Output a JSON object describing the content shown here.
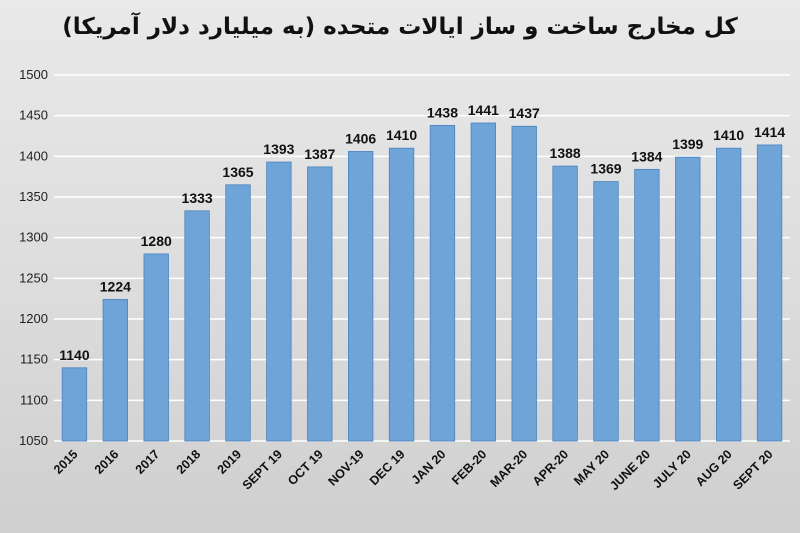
{
  "chart_data": {
    "type": "bar",
    "title": "کل مخارج ساخت و ساز ایالات متحده (به میلیارد دلار آمریکا)",
    "categories": [
      "2015",
      "2016",
      "2017",
      "2018",
      "2019",
      "SEPT 19",
      "OCT 19",
      "NOV-19",
      "DEC 19",
      "JAN 20",
      "FEB-20",
      "MAR-20",
      "APR-20",
      "MAY 20",
      "JUNE 20",
      "JULY 20",
      "AUG 20",
      "SEPT 20"
    ],
    "values": [
      1140,
      1224,
      1280,
      1333,
      1365,
      1393,
      1387,
      1406,
      1410,
      1438,
      1441,
      1437,
      1388,
      1369,
      1384,
      1399,
      1410,
      1414
    ],
    "data_labels": [
      "1140",
      "1224",
      "1280",
      "1333",
      "1365",
      "1393",
      "1387",
      "1406",
      "1410",
      "1438",
      "1441",
      "1437",
      "1388",
      "1369",
      "1384",
      "1399",
      "1410",
      "1414"
    ],
    "ylim": [
      1050,
      1500
    ],
    "yticks": [
      "1050",
      "1100",
      "1150",
      "1200",
      "1250",
      "1300",
      "1350",
      "1400",
      "1450",
      "1500"
    ],
    "xlabel": "",
    "ylabel": "",
    "grid": true,
    "legend": "none",
    "colors": {
      "bar": "#6fa4d8",
      "bar_edge": "#4a83be",
      "grid": "#ffffff"
    }
  }
}
